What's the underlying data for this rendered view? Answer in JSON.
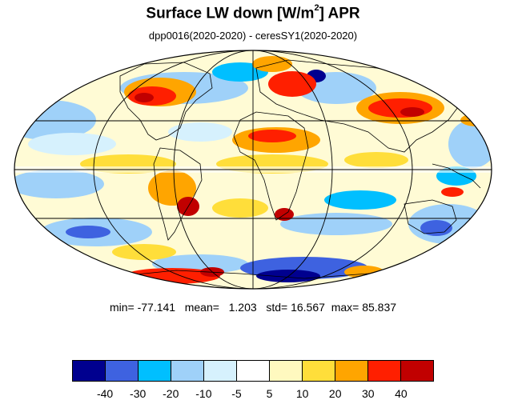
{
  "title": {
    "main": "Surface LW down [W/m",
    "superscript": "2",
    "after": "]  APR"
  },
  "subtitle": "dpp0016(2020-2020) - ceresSY1(2020-2020)",
  "stats": {
    "min_label": "min=",
    "min": "-77.141",
    "mean_label": "mean=",
    "mean": "1.203",
    "std_label": "std=",
    "std": "16.567",
    "max_label": "max=",
    "max": "85.837"
  },
  "colorbar": {
    "colors": [
      "#00008f",
      "#3e62e0",
      "#00bfff",
      "#9fd1f9",
      "#d6f1fd",
      "#ffffff",
      "#fff9bf",
      "#ffde3a",
      "#ffa500",
      "#ff1f00",
      "#c10000"
    ],
    "labels": [
      "-40",
      "-30",
      "-20",
      "-10",
      "-5",
      "5",
      "10",
      "20",
      "30",
      "40"
    ]
  },
  "map": {
    "projection": "Mollweide",
    "land_outline_color": "#000000",
    "gridline_color": "#000000"
  }
}
